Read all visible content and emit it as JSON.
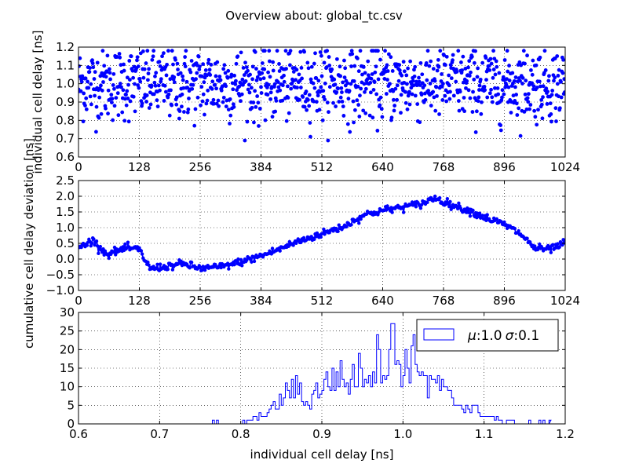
{
  "figure": {
    "title": "Overview about: global_tc.csv",
    "shared_ylabel": "cumulative cell delay deviation [ns]"
  },
  "chart_data": [
    {
      "id": "individual",
      "type": "scatter",
      "ylabel": "individual cell delay [ns]",
      "xlabel": "",
      "xlim": [
        0,
        1024
      ],
      "ylim": [
        0.6,
        1.2
      ],
      "xticks": [
        0,
        128,
        256,
        384,
        512,
        640,
        768,
        896,
        1024
      ],
      "yticks": [
        0.6,
        0.7,
        0.8,
        0.9,
        1.0,
        1.1,
        1.2
      ],
      "ytick_labels": [
        "0.6",
        "0.7",
        "0.8",
        "0.9",
        "1.0",
        "1.1",
        "1.2"
      ],
      "grid": true,
      "color": "#0000ff",
      "series": [
        {
          "n_points": 1024,
          "mean": 1.0,
          "std": 0.1,
          "range": [
            0.69,
            1.18
          ]
        }
      ]
    },
    {
      "id": "cumulative",
      "type": "line",
      "xlabel": "",
      "xlim": [
        0,
        1024
      ],
      "ylim": [
        -1.0,
        2.5
      ],
      "xticks": [
        0,
        128,
        256,
        384,
        512,
        640,
        768,
        896,
        1024
      ],
      "yticks": [
        -1.0,
        -0.5,
        0.0,
        0.5,
        1.0,
        1.5,
        2.0,
        2.5
      ],
      "ytick_labels": [
        "−1.0",
        "−0.5",
        "0.0",
        "0.5",
        "1.0",
        "1.5",
        "2.0",
        "2.5"
      ],
      "grid": true,
      "color": "#0000ff",
      "series": [
        {
          "x": [
            0,
            30,
            60,
            100,
            128,
            150,
            180,
            220,
            256,
            300,
            340,
            384,
            420,
            460,
            512,
            560,
            600,
            640,
            680,
            720,
            750,
            780,
            820,
            860,
            896,
            930,
            960,
            990,
            1024
          ],
          "y": [
            0.35,
            0.6,
            0.15,
            0.35,
            0.3,
            -0.3,
            -0.25,
            -0.15,
            -0.3,
            -0.25,
            -0.1,
            0.1,
            0.3,
            0.55,
            0.8,
            1.05,
            1.4,
            1.55,
            1.65,
            1.75,
            1.95,
            1.75,
            1.55,
            1.3,
            1.1,
            0.8,
            0.35,
            0.3,
            0.5
          ]
        }
      ]
    },
    {
      "id": "histogram",
      "type": "bar",
      "xlabel": "individual cell delay [ns]",
      "xlim": [
        0.6,
        1.2
      ],
      "ylim": [
        0,
        30
      ],
      "xticks": [
        0.6,
        0.7,
        0.8,
        0.9,
        1.0,
        1.1,
        1.2
      ],
      "xtick_labels": [
        "0.6",
        "0.7",
        "0.8",
        "0.9",
        "1.0",
        "1.1",
        "1.2"
      ],
      "yticks": [
        0,
        5,
        10,
        15,
        20,
        25,
        30
      ],
      "grid": true,
      "color": "#0000ff",
      "histtype": "step",
      "legend": {
        "label_mu": "μ",
        "label_sigma": "σ",
        "mu_value": ":1.0",
        "sigma_value": ":0.1",
        "placement": "top-right"
      },
      "series": [
        {
          "bin_centers": [
            0.81,
            0.83,
            0.85,
            0.86,
            0.87,
            0.88,
            0.89,
            0.9,
            0.91,
            0.92,
            0.93,
            0.94,
            0.95,
            0.96,
            0.97,
            0.98,
            0.985,
            0.99,
            1.0,
            1.01,
            1.02,
            1.03,
            1.04,
            1.05,
            1.06,
            1.07,
            1.08,
            1.09,
            1.1,
            1.11,
            1.12
          ],
          "values": [
            1,
            3,
            7,
            11,
            10,
            6,
            9,
            12,
            13,
            15,
            12,
            15,
            16,
            16,
            21,
            17,
            27,
            20,
            17,
            20,
            19,
            10,
            13,
            9,
            7,
            6,
            5,
            4,
            2,
            2,
            1
          ]
        }
      ]
    }
  ]
}
